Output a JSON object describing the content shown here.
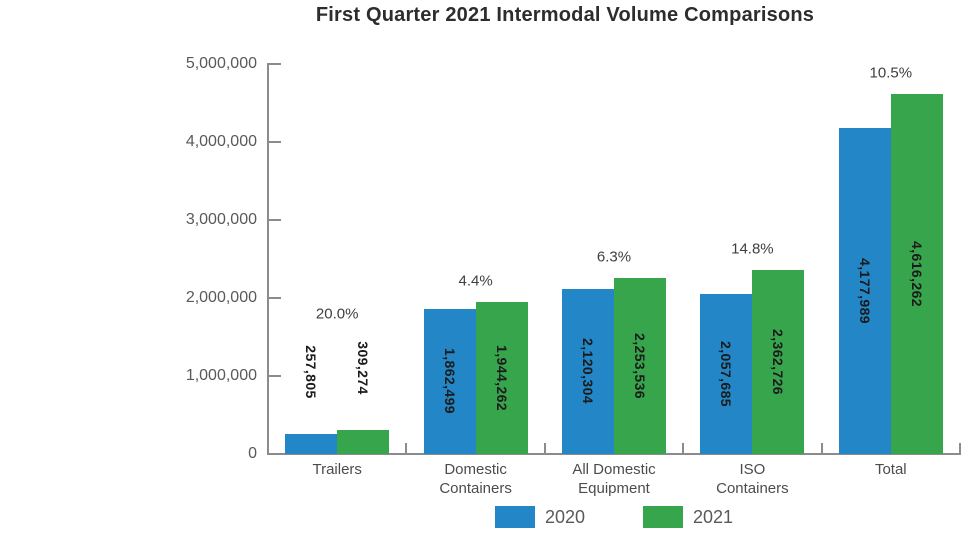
{
  "chart_data": {
    "type": "bar",
    "title": "First Quarter 2021 Intermodal Volume Comparisons",
    "categories": [
      "Trailers",
      "Domestic Containers",
      "All Domestic Equipment",
      "ISO Containers",
      "Total"
    ],
    "category_lines": [
      [
        "Trailers"
      ],
      [
        "Domestic",
        "Containers"
      ],
      [
        "All Domestic",
        "Equipment"
      ],
      [
        "ISO",
        "Containers"
      ],
      [
        "Total"
      ]
    ],
    "series": [
      {
        "name": "2020",
        "color": "#2386c6",
        "values": [
          257805,
          1862499,
          2120304,
          2057685,
          4177989
        ],
        "value_labels": [
          "257,805",
          "1,862,499",
          "2,120,304",
          "2,057,685",
          "4,177,989"
        ]
      },
      {
        "name": "2021",
        "color": "#36a54c",
        "values": [
          309274,
          1944262,
          2253536,
          2362726,
          4616262
        ],
        "value_labels": [
          "309,274",
          "1,944,262",
          "2,253,536",
          "2,362,726",
          "4,616,262"
        ]
      }
    ],
    "percent_change_labels": [
      "20.0%",
      "4.4%",
      "6.3%",
      "14.8%",
      "10.5%"
    ],
    "xlabel": "",
    "ylabel": "",
    "ylim": [
      0,
      5000000
    ],
    "ytick_labels": [
      "5,000,000",
      "4,000,000",
      "3,000,000",
      "2,000,000",
      "1,000,000",
      "0"
    ],
    "axis_color": "#8b8b8b",
    "grid": "off",
    "legend_position": "bottom"
  }
}
